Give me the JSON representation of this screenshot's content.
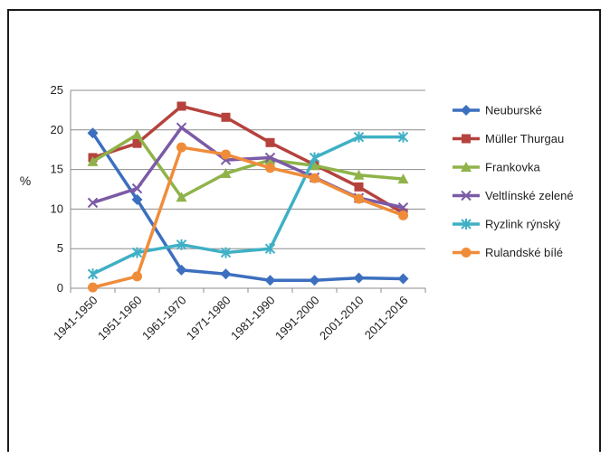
{
  "chart_data": {
    "type": "line",
    "title": "",
    "xlabel": "",
    "ylabel": "%",
    "ylim": [
      0,
      25
    ],
    "yticks": [
      0,
      5,
      10,
      15,
      20,
      25
    ],
    "grid": "horizontal",
    "legend": "right",
    "categories": [
      "1941-1950",
      "1951-1960",
      "1961-1970",
      "1971-1980",
      "1981-1990",
      "1991-2000",
      "2001-2010",
      "2011-2016"
    ],
    "series": [
      {
        "name": "Neuburské",
        "color": "#3c6fbf",
        "marker": "diamond",
        "values": [
          19.6,
          11.2,
          2.3,
          1.8,
          1.0,
          1.0,
          1.3,
          1.2
        ]
      },
      {
        "name": "Müller Thurgau",
        "color": "#b5423d",
        "marker": "square",
        "values": [
          16.5,
          18.3,
          23.0,
          21.6,
          18.4,
          15.6,
          12.8,
          9.5
        ]
      },
      {
        "name": "Frankovka",
        "color": "#8fb34a",
        "marker": "triangle",
        "values": [
          16.0,
          19.4,
          11.5,
          14.5,
          16.2,
          15.5,
          14.3,
          13.8
        ]
      },
      {
        "name": "Veltlínské zelené",
        "color": "#7b5aa6",
        "marker": "x",
        "values": [
          10.8,
          12.6,
          20.3,
          16.2,
          16.5,
          14.0,
          11.4,
          10.2
        ]
      },
      {
        "name": "Ryzlink rýnský",
        "color": "#3fb0c5",
        "marker": "star",
        "values": [
          1.8,
          4.5,
          5.5,
          4.5,
          5.0,
          16.5,
          19.1,
          19.1
        ]
      },
      {
        "name": "Rulandské bílé",
        "color": "#ef8c3a",
        "marker": "circle",
        "values": [
          0.1,
          1.5,
          17.8,
          16.9,
          15.2,
          13.9,
          11.3,
          9.2
        ]
      }
    ]
  }
}
